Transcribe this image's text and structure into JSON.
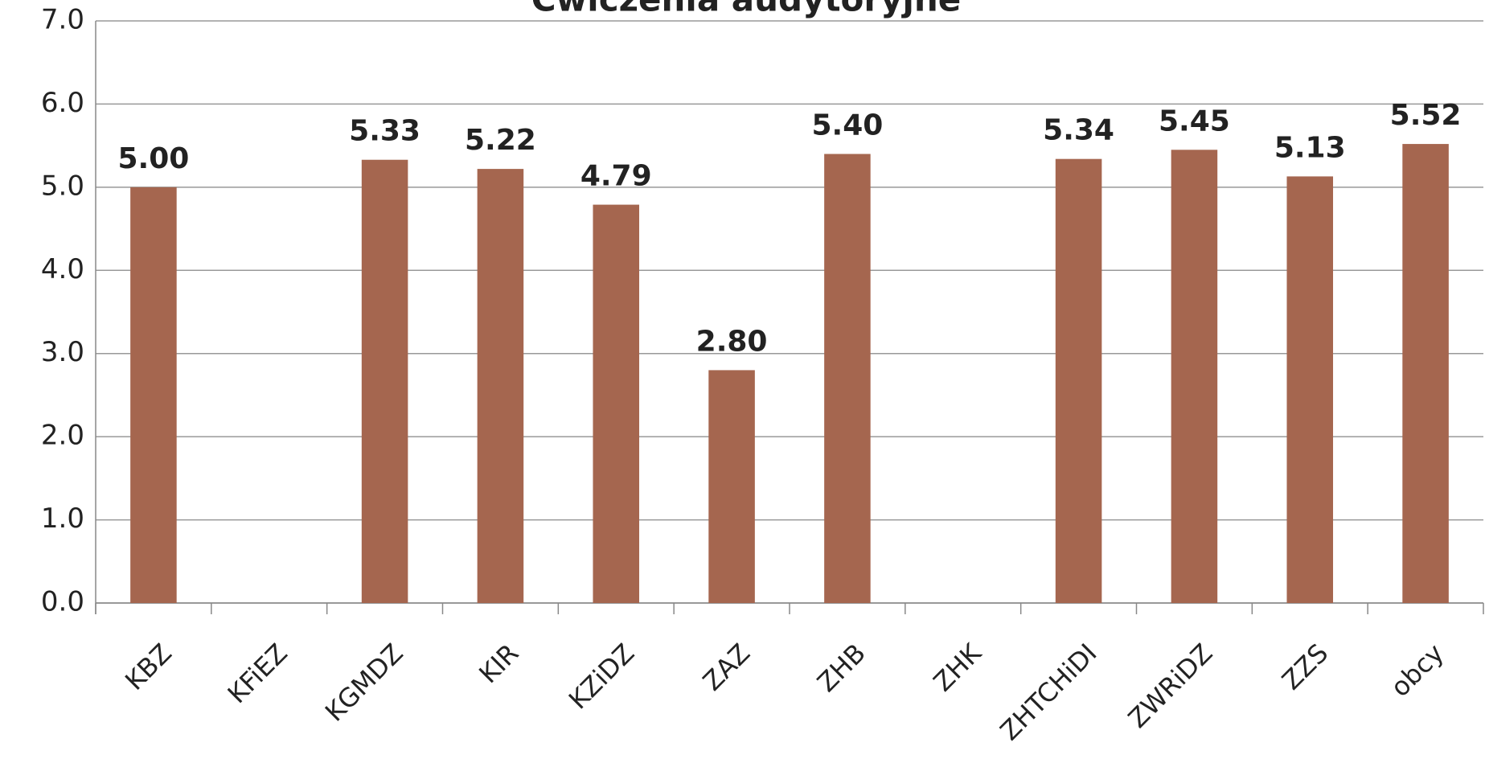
{
  "chart_data": {
    "type": "bar",
    "title": "Ćwiczenia audytoryjne",
    "categories": [
      "KBZ",
      "KFiEZ",
      "KGMDZ",
      "KIR",
      "KZiDZ",
      "ZAZ",
      "ZHB",
      "ZHK",
      "ZHTCHiDI",
      "ZWRiDZ",
      "ZZS",
      "obcy"
    ],
    "values": [
      5.0,
      null,
      5.33,
      5.22,
      4.79,
      2.8,
      5.4,
      null,
      5.34,
      5.45,
      5.13,
      5.52
    ],
    "value_labels": [
      "5.00",
      null,
      "5.33",
      "5.22",
      "4.79",
      "2.80",
      "5.40",
      null,
      "5.34",
      "5.45",
      "5.13",
      "5.52"
    ],
    "color": "#a5664f",
    "ylim": [
      0,
      7
    ],
    "yticks": [
      {
        "value": 0,
        "label": "0.0"
      },
      {
        "value": 1,
        "label": "1.0"
      },
      {
        "value": 2,
        "label": "2.0"
      },
      {
        "value": 3,
        "label": "3.0"
      },
      {
        "value": 4,
        "label": "4.0"
      },
      {
        "value": 5,
        "label": "5.0"
      },
      {
        "value": 6,
        "label": "6.0"
      },
      {
        "value": 7,
        "label": "7.0"
      }
    ],
    "grid": true
  }
}
